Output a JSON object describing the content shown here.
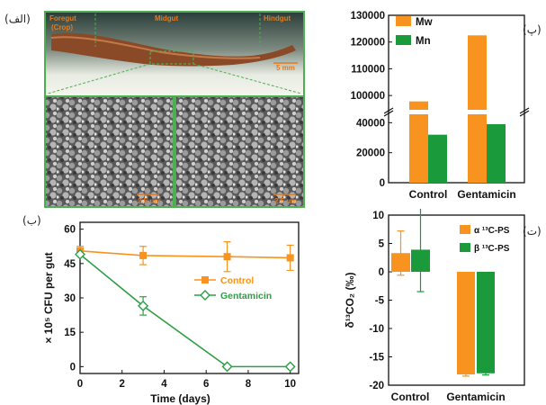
{
  "panel_labels": {
    "a": "(الف)",
    "b": "(ب)",
    "p": "(پ)",
    "t": "(ت)"
  },
  "photo": {
    "foregut_label": "Foregut",
    "crop_label": "(Crop)",
    "midgut_label": "Midgut",
    "hindgut_label": "Hindgut",
    "scale_main": "5 mm",
    "scale_sem_left": "2.5 μm",
    "scale_sem_right": "2.5 μm"
  },
  "chart_data": [
    {
      "panel": "پ",
      "type": "bar",
      "categories": [
        "Control",
        "Gentamicin"
      ],
      "series": [
        {
          "name": "Mw",
          "values": [
            97800,
            122500
          ],
          "color": "#f7931e"
        },
        {
          "name": "Mn",
          "values": [
            32000,
            39000
          ],
          "color": "#1a9a3a"
        }
      ],
      "ylim": [
        0,
        130000
      ],
      "axis_break": [
        45000,
        95000
      ],
      "yticks": [
        "0",
        "20000",
        "40000",
        "100000",
        "110000",
        "120000",
        "130000"
      ],
      "legend": "top-left"
    },
    {
      "panel": "ب",
      "type": "line",
      "series": [
        {
          "name": "Control",
          "x": [
            0,
            3,
            7,
            10
          ],
          "y": [
            50.5,
            48.5,
            48,
            47.5
          ],
          "err": [
            2,
            4,
            6.5,
            5.5
          ],
          "color": "#f7931e",
          "marker": "square"
        },
        {
          "name": "Gentamicin",
          "x": [
            0,
            3,
            7,
            10
          ],
          "y": [
            49,
            26.5,
            0,
            0
          ],
          "err": [
            0,
            4,
            0.6,
            0.6
          ],
          "color": "#2e9e46",
          "marker": "diamond-open"
        }
      ],
      "xlabel": "Time (days)",
      "ylabel": "× 10⁵ CFU per gut",
      "xlim": [
        0,
        10.4
      ],
      "ylim": [
        -3,
        63
      ],
      "xticks": [
        "0",
        "2",
        "4",
        "6",
        "8",
        "10"
      ],
      "yticks": [
        "0",
        "15",
        "30",
        "45",
        "60"
      ],
      "legend": "center-right"
    },
    {
      "panel": "ت",
      "type": "bar",
      "categories": [
        "Control",
        "Gentamicin"
      ],
      "series": [
        {
          "name": "α ¹³C-PS",
          "values": [
            3.3,
            -18.1
          ],
          "err": [
            3.9,
            0.3
          ],
          "color": "#f7931e"
        },
        {
          "name": "β ¹³C-PS",
          "values": [
            3.9,
            -17.9
          ],
          "err": [
            7.4,
            0.3
          ],
          "color": "#1a9a3a"
        }
      ],
      "ylabel": "δ¹³CO₂ (‰)",
      "ylim": [
        -20,
        10
      ],
      "yticks": [
        "-20",
        "-15",
        "-10",
        "-5",
        "0",
        "5",
        "10"
      ],
      "legend": "top-right"
    }
  ]
}
